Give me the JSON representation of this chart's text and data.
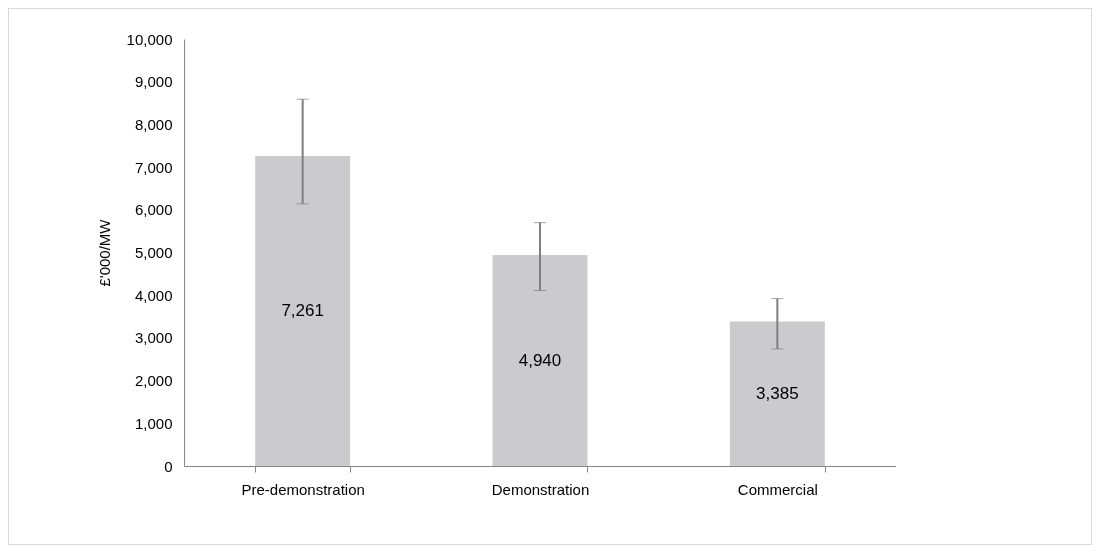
{
  "chart_data": {
    "type": "bar",
    "ylabel": "£'000/MW",
    "categories": [
      "Pre-demonstration",
      "Demonstration",
      "Commercial"
    ],
    "values": [
      7261,
      4940,
      3385
    ],
    "value_labels": [
      "7,261",
      "4,940",
      "3,385"
    ],
    "errors": [
      [
        6140,
        8590
      ],
      [
        4110,
        5700
      ],
      [
        2740,
        3920
      ]
    ],
    "color": "#cbcbcd",
    "ylim": [
      0,
      10000
    ],
    "yticks": [
      0,
      {
        "value": 1000,
        "label": "1,000"
      },
      {
        "value": 2000,
        "label": "2,000"
      },
      {
        "value": 3000,
        "label": "3,000"
      },
      {
        "value": 4000,
        "label": "4,000"
      },
      {
        "value": 5000,
        "label": "5,000"
      },
      {
        "value": 6000,
        "label": "6,000"
      },
      {
        "value": 7000,
        "label": "7,000"
      },
      {
        "value": 8000,
        "label": "8,000"
      },
      {
        "value": 9000,
        "label": "9,000"
      },
      {
        "value": 10000,
        "label": "10,000"
      }
    ],
    "grid": false
  }
}
